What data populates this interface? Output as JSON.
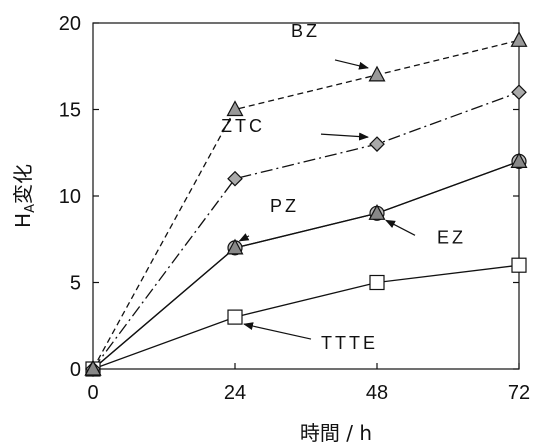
{
  "chart_data": {
    "type": "line",
    "title": "",
    "xlabel": "時間 / h",
    "ylabel": "H",
    "ylabel_sub": "A",
    "ylabel_suffix": "変化",
    "x": [
      0,
      24,
      48,
      72
    ],
    "x_tick_labels": [
      "0",
      "24",
      "48",
      "72"
    ],
    "y_tick_labels": [
      "0",
      "5",
      "10",
      "15",
      "20"
    ],
    "xlim": [
      0,
      72
    ],
    "ylim": [
      0,
      20
    ],
    "grid": false,
    "series": [
      {
        "name": "BZ",
        "values": [
          0,
          15,
          17,
          19
        ],
        "line": "dashed",
        "marker": "triangle",
        "color": "#999999"
      },
      {
        "name": "ZTC",
        "values": [
          0,
          11,
          13,
          16
        ],
        "line": "dash-dot",
        "marker": "diamond",
        "color": "#aaaaaa"
      },
      {
        "name": "PZ",
        "values": [
          0,
          7,
          9,
          12
        ],
        "line": "solid",
        "marker": "triangle",
        "color": "#888888"
      },
      {
        "name": "EZ",
        "values": [
          0,
          7,
          9,
          12
        ],
        "line": "solid",
        "marker": "circle",
        "color": "#bbbbbb"
      },
      {
        "name": "TTTE",
        "values": [
          0,
          3,
          5,
          6
        ],
        "line": "solid",
        "marker": "square",
        "color": "#ffffff"
      }
    ],
    "annotations": [
      {
        "text": "BZ",
        "series": "BZ",
        "point_x": 48
      },
      {
        "text": "ZTC",
        "series": "ZTC",
        "point_x": 48
      },
      {
        "text": "PZ",
        "series": "PZ",
        "point_x": 24
      },
      {
        "text": "EZ",
        "series": "EZ",
        "point_x": 48
      },
      {
        "text": "TTTE",
        "series": "TTTE",
        "point_x": 24
      }
    ]
  }
}
